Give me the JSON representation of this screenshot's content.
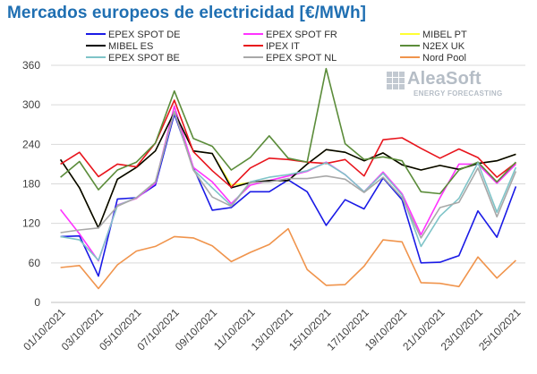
{
  "chart_data": {
    "type": "line",
    "title": "Mercados europeos de electricidad [€/MWh]",
    "xlabel": "",
    "ylabel": "",
    "ylim": [
      0,
      360
    ],
    "yticks": [
      0,
      60,
      120,
      180,
      240,
      300,
      360
    ],
    "grid": "horizontal",
    "legend_position": "top",
    "x": [
      "01/10/2021",
      "02/10/2021",
      "03/10/2021",
      "04/10/2021",
      "05/10/2021",
      "06/10/2021",
      "07/10/2021",
      "08/10/2021",
      "09/10/2021",
      "10/10/2021",
      "11/10/2021",
      "12/10/2021",
      "13/10/2021",
      "14/10/2021",
      "15/10/2021",
      "16/10/2021",
      "17/10/2021",
      "18/10/2021",
      "19/10/2021",
      "20/10/2021",
      "21/10/2021",
      "22/10/2021",
      "23/10/2021",
      "24/10/2021",
      "25/10/2021"
    ],
    "xtick_labels": [
      "01/10/2021",
      "03/10/2021",
      "05/10/2021",
      "07/10/2021",
      "09/10/2021",
      "11/10/2021",
      "13/10/2021",
      "15/10/2021",
      "17/10/2021",
      "19/10/2021",
      "21/10/2021",
      "23/10/2021",
      "25/10/2021"
    ],
    "series": [
      {
        "name": "EPEX SPOT DE",
        "color": "#1a1ae6",
        "values": [
          100,
          101,
          40,
          157,
          159,
          178,
          286,
          205,
          140,
          144,
          168,
          168,
          186,
          168,
          117,
          156,
          142,
          189,
          156,
          60,
          61,
          71,
          139,
          99,
          176
        ]
      },
      {
        "name": "EPEX SPOT FR",
        "color": "#ff33ff",
        "values": [
          141,
          104,
          63,
          148,
          158,
          181,
          298,
          205,
          183,
          150,
          178,
          185,
          192,
          199,
          213,
          194,
          168,
          198,
          165,
          103,
          159,
          210,
          210,
          181,
          210
        ]
      },
      {
        "name": "MIBEL PT",
        "color": "#ffff33",
        "values": [
          217,
          174,
          113,
          187,
          205,
          230,
          289,
          230,
          226,
          178,
          182,
          185,
          185,
          210,
          232,
          228,
          215,
          227,
          209,
          201,
          208,
          202,
          211,
          215,
          225
        ]
      },
      {
        "name": "MIBEL ES",
        "color": "#000000",
        "values": [
          217,
          174,
          113,
          187,
          205,
          230,
          289,
          230,
          226,
          174,
          182,
          185,
          185,
          210,
          232,
          228,
          215,
          227,
          209,
          201,
          208,
          202,
          211,
          215,
          225
        ]
      },
      {
        "name": "IPEX IT",
        "color": "#e8141c",
        "values": [
          210,
          228,
          191,
          210,
          206,
          242,
          307,
          229,
          200,
          175,
          204,
          219,
          217,
          213,
          211,
          217,
          192,
          247,
          250,
          234,
          219,
          233,
          220,
          190,
          212
        ]
      },
      {
        "name": "N2EX UK",
        "color": "#5b8c3a",
        "values": [
          190,
          214,
          171,
          201,
          213,
          242,
          321,
          249,
          237,
          201,
          220,
          253,
          219,
          213,
          355,
          241,
          217,
          221,
          215,
          168,
          165,
          201,
          213,
          183,
          213
        ]
      },
      {
        "name": "EPEX SPOT BE",
        "color": "#7fc4c8",
        "values": [
          100,
          95,
          64,
          147,
          159,
          183,
          290,
          202,
          174,
          147,
          183,
          190,
          194,
          200,
          212,
          194,
          168,
          196,
          163,
          85,
          131,
          158,
          212,
          137,
          205
        ]
      },
      {
        "name": "EPEX SPOT NL",
        "color": "#a8a8a8",
        "values": [
          106,
          110,
          113,
          146,
          159,
          183,
          290,
          201,
          160,
          146,
          182,
          183,
          188,
          188,
          192,
          187,
          167,
          190,
          159,
          98,
          144,
          152,
          204,
          130,
          199
        ]
      },
      {
        "name": "Nord Pool",
        "color": "#f0944c",
        "values": [
          53,
          56,
          21,
          57,
          78,
          85,
          100,
          98,
          86,
          62,
          76,
          88,
          112,
          50,
          26,
          27,
          55,
          95,
          92,
          30,
          29,
          24,
          69,
          37,
          64
        ]
      }
    ]
  },
  "logo": {
    "name": "AleaSoft",
    "tagline": "ENERGY FORECASTING"
  }
}
